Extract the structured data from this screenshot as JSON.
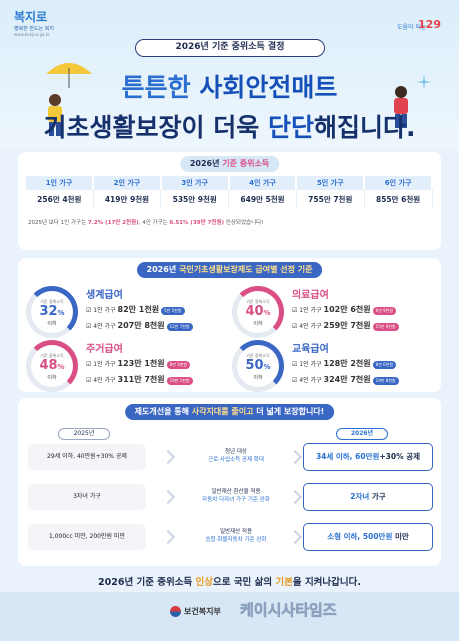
{
  "header": {
    "logo_main": "복지로",
    "logo_sub": "행복한 만드는 복지",
    "logo_url": "www.bokjiro.go.kr",
    "badge_text": "도움이 되는",
    "badge_num": "129",
    "pill": "2026년 기준 중위소득 결정",
    "title1_pre": "튼튼한 ",
    "title1_hl": "사회안전매트",
    "title2_pre": "기초생활보장",
    "title2_mid": "이 더욱 ",
    "title2_hl": "단단",
    "title2_post": "해집니다."
  },
  "income": {
    "bar_pre": "2026년 ",
    "bar_acc": "기준 중위소득",
    "headers": [
      "1인 가구",
      "2인 가구",
      "3인 가구",
      "4인 가구",
      "5인 가구",
      "6인 가구"
    ],
    "values": [
      "256만 4천원",
      "419만 9천원",
      "535만 9천원",
      "649만 5천원",
      "755만 7천원",
      "855만 6천원"
    ],
    "note_pre": "2025년 보다 1인 가구는 ",
    "note_1": "7.2% (17만 2천원)",
    "note_mid": ", 4인 가구는 ",
    "note_2": "6.51% (39만 7천원)",
    "note_post": " 인상되었습니다!"
  },
  "benefits": {
    "bar_pre": "2026년 ",
    "bar_acc": "국민기초생활보장제도 급여별 선정 기준",
    "ring_label": "기준 중위소득",
    "ring_under": "이하",
    "items": [
      {
        "title": "생계급여",
        "pct": "32",
        "color": "#3a66c4",
        "r1_label": "1인 가구",
        "r1": "82만 1천원",
        "r1_tag": "5만 5천원",
        "r2_label": "4인 가구",
        "r2": "207만 8천원",
        "r2_tag": "12만 7천원"
      },
      {
        "title": "의료급여",
        "pct": "40",
        "color": "#d94f85",
        "r1_label": "1인 가구",
        "r1": "102만 6천원",
        "r1_tag": "6만 9천원",
        "r2_label": "4인 가구",
        "r2": "259만 7천원",
        "r2_tag": "15만 9천원"
      },
      {
        "title": "주거급여",
        "pct": "48",
        "color": "#d94f85",
        "r1_label": "1인 가구",
        "r1": "123만 1천원",
        "r1_tag": "8만 3천원",
        "r2_label": "4인 가구",
        "r2": "311만 7천원",
        "r2_tag": "19만 1천원"
      },
      {
        "title": "교육급여",
        "pct": "50",
        "color": "#3a66c4",
        "r1_label": "1인 가구",
        "r1": "128만 2천원",
        "r1_tag": "8만 6천원",
        "r2_label": "4인 가구",
        "r2": "324만 7천원",
        "r2_tag": "19만 8천원"
      }
    ]
  },
  "improve": {
    "bar_pre": "제도개선을 통해 ",
    "bar_acc": "사각지대를 줄이고",
    "bar_post": " 더 넓게 보장합니다!",
    "old_year": "2025년",
    "new_year": "2026년",
    "rows": [
      {
        "old": "29세 이하, 40만원+30% 공제",
        "mid1": "청년 대상",
        "mid2": "근로·사업소득 공제 확대",
        "new_hl": "34세 이하, 60만원",
        "new_post": "+30% 공제"
      },
      {
        "old": "3자녀 가구",
        "mid1": "일반재산 환산율 적용",
        "mid2": "자동차 다자녀 가구 기준 완화",
        "new_hl": "2자녀",
        "new_post": " 가구"
      },
      {
        "old": "1,000cc 미만, 200만원 미만",
        "mid1": "일반재산 적용",
        "mid2": "승합·화물자동차 기준 완화",
        "new_hl": "소형 이하, 500만원",
        "new_post": " 미만"
      }
    ]
  },
  "footer": {
    "banner_pre": "2026년 기준 중위소득 ",
    "banner_acc1": "인상",
    "banner_mid": "으로 국민 삶의 ",
    "banner_acc2": "기본",
    "banner_post": "을 지켜나갑니다.",
    "ministry": "보건복지부",
    "watermark": "케이시사타임즈"
  },
  "colors": {
    "brand": "#2a6fd0",
    "pink": "#d94f85",
    "navy": "#1d2b4f"
  }
}
